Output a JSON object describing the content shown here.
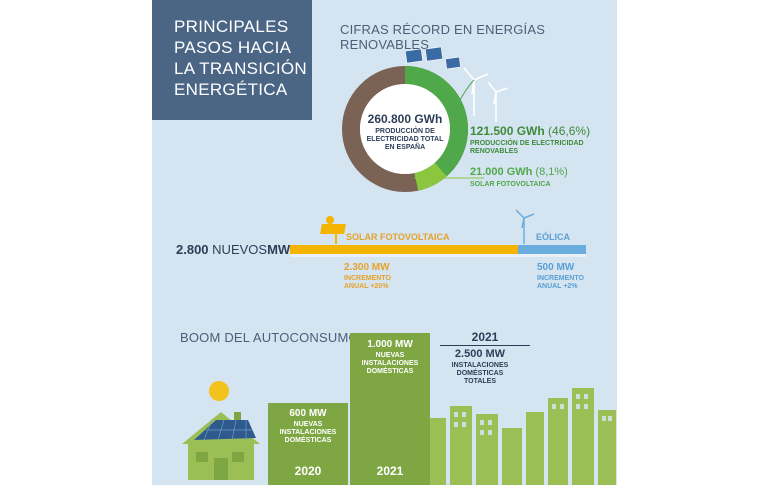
{
  "header": {
    "title_lines": [
      "PRINCIPALES",
      "PASOS HACIA",
      "LA TRANSICIÓN",
      "ENERGÉTICA"
    ]
  },
  "records": {
    "title": "CIFRAS RÉCORD EN ENERGÍAS RENOVABLES",
    "total": {
      "value": "260.800 GWh",
      "caption_lines": [
        "PRODUCCIÓN DE",
        "ELECTRICIDAD TOTAL",
        "EN ESPAÑA"
      ]
    },
    "renewables": {
      "value": "121.500 GWh",
      "percent": "(46,6%)",
      "caption_lines": [
        "PRODUCCIÓN DE ELECTRICIDAD",
        "RENOVABLES"
      ],
      "share": 0.466
    },
    "solar": {
      "value": "21.000 GWh",
      "percent": "(8,1%)",
      "caption": "SOLAR FOTOVOLTAICA",
      "share": 0.081
    }
  },
  "new_capacity": {
    "total_value": "2.800",
    "total_label": "NUEVOS",
    "total_unit": "MW",
    "solar": {
      "label": "SOLAR FOTOVOLTAICA",
      "value": "2.300 MW",
      "caption_lines": [
        "INCREMENTO",
        "ANUAL +20%"
      ]
    },
    "wind": {
      "label": "EÓLICA",
      "value": "500 MW",
      "caption_lines": [
        "INCREMENTO",
        "ANUAL +2%"
      ]
    }
  },
  "self_consumption": {
    "title": "BOOM DEL AUTOCONSUMO",
    "bar_2020": {
      "year": "2020",
      "value": "600 MW",
      "caption_lines": [
        "NUEVAS",
        "INSTALACIONES",
        "DOMÉSTICAS"
      ]
    },
    "bar_2021": {
      "year": "2021",
      "value": "1.000 MW",
      "caption_lines": [
        "NUEVAS",
        "INSTALACIONES",
        "DOMÉSTICAS"
      ]
    },
    "total_2021": {
      "year": "2021",
      "value": "2.500 MW",
      "caption_lines": [
        "INSTALACIONES",
        "DOMÉSTICAS",
        "TOTALES"
      ]
    }
  },
  "colors": {
    "panel_bg": "#d5e4f1",
    "title_bg": "#4b6585",
    "donut_brown": "#7a6355",
    "donut_green": "#4fa84a",
    "donut_light_green": "#8cc63f",
    "bar_green": "#7ea744",
    "solar_orange": "#f4b400",
    "wind_blue": "#6aaedf"
  }
}
